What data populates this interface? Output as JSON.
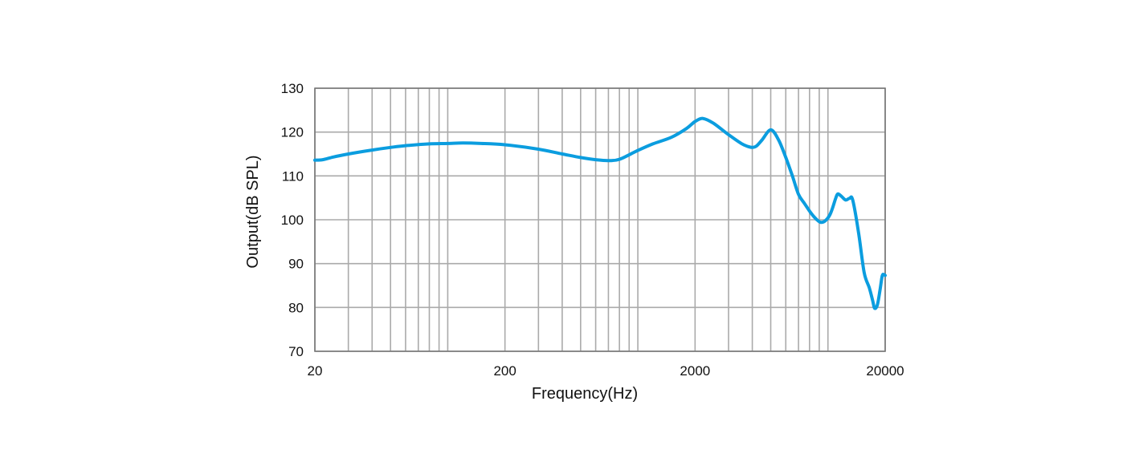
{
  "chart_data": {
    "type": "line",
    "title": "",
    "xlabel": "Frequency(Hz)",
    "ylabel": "Output(dB SPL)",
    "x_scale": "log",
    "xlim": [
      20,
      20000
    ],
    "ylim": [
      70,
      130
    ],
    "x_ticks": [
      20,
      200,
      2000,
      20000
    ],
    "x_tick_labels": [
      "20",
      "200",
      "2000",
      "20000"
    ],
    "y_ticks": [
      70,
      80,
      90,
      100,
      110,
      120,
      130
    ],
    "y_tick_labels": [
      "70",
      "80",
      "90",
      "100",
      "110",
      "120",
      "130"
    ],
    "grid": true,
    "legend": "none",
    "line_color": "#0b9ddf",
    "grid_color": "#aaaaaa",
    "series": [
      {
        "x": [
          20,
          22,
          25,
          30,
          40,
          50,
          60,
          80,
          100,
          120,
          150,
          200,
          300,
          400,
          500,
          600,
          700,
          800,
          1000,
          1200,
          1500,
          1800,
          2000,
          2200,
          2500,
          3000,
          3500,
          3800,
          4000,
          4200,
          4500,
          5000,
          5500,
          6000,
          6500,
          7000,
          7500,
          8000,
          8400,
          8800,
          9200,
          9700,
          10200,
          10600,
          11000,
          11300,
          11800,
          12400,
          13000,
          13500,
          14500,
          15500,
          16500,
          17200,
          17600,
          18200,
          18800,
          19300,
          19700,
          20000
        ],
        "y": [
          113.6,
          113.7,
          114.3,
          115.0,
          115.9,
          116.5,
          116.9,
          117.3,
          117.4,
          117.5,
          117.4,
          117.1,
          116.1,
          115.0,
          114.2,
          113.7,
          113.5,
          113.8,
          115.8,
          117.3,
          118.8,
          120.8,
          122.4,
          123.1,
          122.0,
          119.4,
          117.4,
          116.7,
          116.5,
          116.8,
          118.2,
          120.5,
          118.2,
          114.2,
          110.0,
          105.8,
          103.8,
          102.0,
          100.8,
          99.9,
          99.4,
          99.8,
          101.0,
          102.8,
          105.0,
          105.9,
          105.3,
          104.5,
          104.9,
          104.5,
          97.0,
          88.0,
          84.5,
          81.5,
          79.8,
          80.6,
          84.0,
          87.2,
          87.5,
          87.3
        ]
      }
    ]
  }
}
